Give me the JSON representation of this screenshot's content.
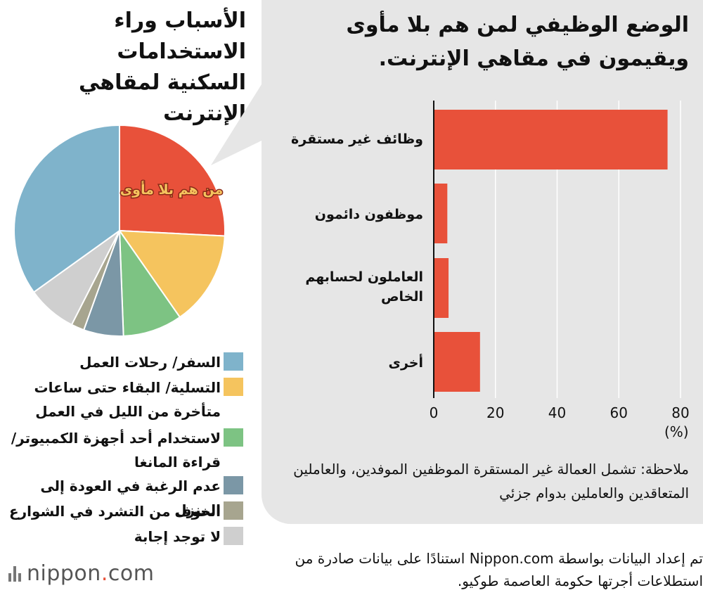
{
  "pie_title": "الأسباب وراء الاستخدامات السكنية لمقاهي الإنترنت",
  "bar_title": "الوضع الوظيفي لمن هم بلا مأوى ويقيمون في مقاهي الإنترنت.",
  "pie_callout": "من هم بلا مأوى",
  "unit_label": "(%)",
  "note": "ملاحظة: تشمل العمالة غير المستقرة الموظفين الموفدين، والعاملين المتعاقدين والعاملين بدوام جزئي",
  "source": "تم إعداد البيانات بواسطة Nippon.com استنادًا على بيانات صادرة من استطلاعات أجرتها حكومة العاصمة طوكيو.",
  "logo": {
    "text_main": "nippon",
    "text_dot": ".",
    "text_tld": "com"
  },
  "colors": {
    "bar": "#e8513a",
    "bubble": "#e6e6e6"
  },
  "chart_data": [
    {
      "type": "pie",
      "title": "الأسباب وراء الاستخدامات السكنية لمقاهي الإنترنت",
      "slices": [
        {
          "label": "من هم بلا مأوى",
          "value": 25.8,
          "color": "#e8513a"
        },
        {
          "label": "التسلية/ البقاء حتى ساعات متأخرة من الليل في العمل",
          "value": 14.5,
          "color": "#f5c45e"
        },
        {
          "label": "لاستخدام أحد أجهزة الكمبيوتر/ قراءة المانغا",
          "value": 9.1,
          "color": "#7dc383"
        },
        {
          "label": "عدم الرغبة في العودة إلى المنزل",
          "value": 6.1,
          "color": "#7b97a6"
        },
        {
          "label": "الخوف من التشرد في الشوارع",
          "value": 2.0,
          "color": "#a7a58f"
        },
        {
          "label": "لا توجد إجابة",
          "value": 7.6,
          "color": "#cfcfcf"
        },
        {
          "label": "السفر/ رحلات العمل",
          "value": 34.9,
          "color": "#7fb3cb"
        }
      ],
      "legend": [
        {
          "label": "السفر/ رحلات العمل",
          "color": "#7fb3cb"
        },
        {
          "label": "التسلية/ البقاء حتى ساعات متأخرة من الليل في العمل",
          "color": "#f5c45e"
        },
        {
          "label": "لاستخدام أحد أجهزة الكمبيوتر/ قراءة المانغا",
          "color": "#7dc383"
        },
        {
          "label": "عدم الرغبة في العودة إلى المنزل",
          "color": "#7b97a6"
        },
        {
          "label": "الخوف من التشرد في الشوارع",
          "color": "#a7a58f"
        },
        {
          "label": "لا توجد إجابة",
          "color": "#cfcfcf"
        }
      ]
    },
    {
      "type": "bar",
      "orientation": "horizontal",
      "title": "الوضع الوظيفي لمن هم بلا مأوى ويقيمون في مقاهي الإنترنت.",
      "categories": [
        "وظائف غير مستقرة",
        "موظفون دائمون",
        "العاملون لحسابهم الخاص",
        "أخرى"
      ],
      "values": [
        75.8,
        4.4,
        4.8,
        15.0
      ],
      "xlim": [
        0,
        80
      ],
      "xticks": [
        0,
        20,
        40,
        60,
        80
      ],
      "unit": "(%)",
      "grid": true
    }
  ]
}
